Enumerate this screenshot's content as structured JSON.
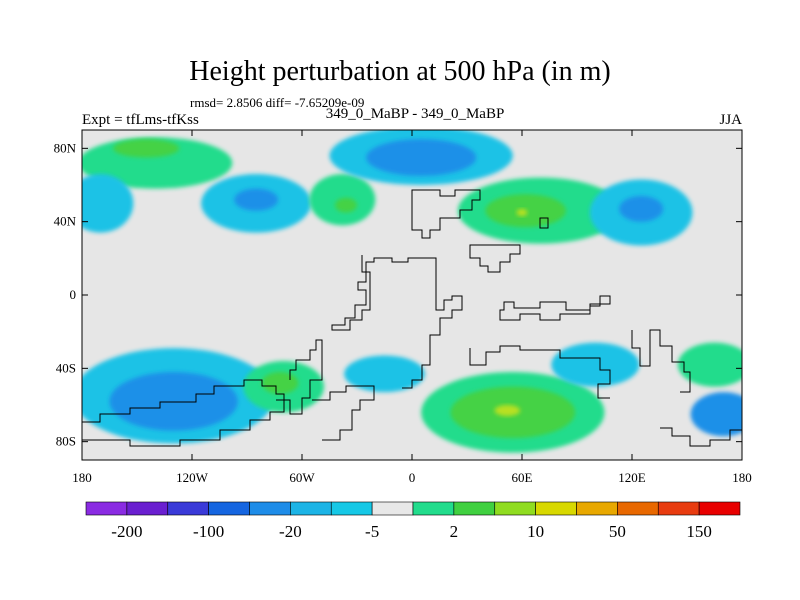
{
  "header": {
    "title": "Height perturbation at 500 hPa (in m)",
    "stats": "rmsd= 2.8506 diff= -7.65209e-09",
    "experiment": "Expt = tfLms-tfKss",
    "subtitle": "349_0_MaBP - 349_0_MaBP",
    "season": "JJA"
  },
  "map_axes": {
    "lon_range": [
      -180,
      180
    ],
    "lat_range": [
      -90,
      90
    ],
    "x_ticks": [
      {
        "lon": -180,
        "label": "180"
      },
      {
        "lon": -120,
        "label": "120W"
      },
      {
        "lon": -60,
        "label": "60W"
      },
      {
        "lon": 0,
        "label": "0"
      },
      {
        "lon": 60,
        "label": "60E"
      },
      {
        "lon": 120,
        "label": "120E"
      },
      {
        "lon": 180,
        "label": "180"
      }
    ],
    "y_ticks": [
      {
        "lat": 80,
        "label": "80N"
      },
      {
        "lat": 40,
        "label": "40N"
      },
      {
        "lat": 0,
        "label": "0"
      },
      {
        "lat": -40,
        "label": "40S"
      },
      {
        "lat": -80,
        "label": "80S"
      }
    ]
  },
  "colorbar": {
    "colors": [
      "#8a2be2",
      "#6a1fd0",
      "#3a3ad8",
      "#1565e0",
      "#1e8ce8",
      "#1cb4e6",
      "#16c8e6",
      "#e8e8e8",
      "#22dc8c",
      "#40d040",
      "#90dc20",
      "#d8d800",
      "#e8a800",
      "#e86800",
      "#e83c10",
      "#e80000"
    ],
    "labels": [
      {
        "index": 1,
        "text": "-200"
      },
      {
        "index": 3,
        "text": "-100"
      },
      {
        "index": 5,
        "text": "-20"
      },
      {
        "index": 7,
        "text": "-5"
      },
      {
        "index": 9,
        "text": "2"
      },
      {
        "index": 11,
        "text": "10"
      },
      {
        "index": 13,
        "text": "50"
      },
      {
        "index": 15,
        "text": "150"
      }
    ]
  },
  "palette": {
    "background": "#e6e6e6",
    "cyan": "#1ec2e6",
    "blue": "#1e90e8",
    "deep_blue": "#1a72e0",
    "light_green": "#22dc8c",
    "green": "#44d244",
    "yellow_green": "#b8e020",
    "coast": "#000000"
  },
  "anomaly_regions": [
    {
      "level": "light_green",
      "label": "north-atlantic-positive",
      "lon": -140,
      "lat": 72,
      "rx": 42,
      "ry": 14
    },
    {
      "level": "green",
      "label": "north-atlantic-core",
      "lon": -145,
      "lat": 80,
      "rx": 18,
      "ry": 5
    },
    {
      "level": "cyan",
      "label": "north-america-negative",
      "lon": -85,
      "lat": 50,
      "rx": 30,
      "ry": 16
    },
    {
      "level": "blue",
      "label": "north-america-core",
      "lon": -85,
      "lat": 52,
      "rx": 12,
      "ry": 6
    },
    {
      "level": "light_green",
      "label": "greenland-positive",
      "lon": -38,
      "lat": 52,
      "rx": 18,
      "ry": 14
    },
    {
      "level": "green",
      "label": "greenland-core",
      "lon": -36,
      "lat": 49,
      "rx": 6,
      "ry": 4
    },
    {
      "level": "cyan",
      "label": "arctic-negative",
      "lon": 5,
      "lat": 76,
      "rx": 50,
      "ry": 16
    },
    {
      "level": "blue",
      "label": "arctic-core",
      "lon": 5,
      "lat": 75,
      "rx": 30,
      "ry": 10
    },
    {
      "level": "light_green",
      "label": "europe-positive",
      "lon": 70,
      "lat": 46,
      "rx": 45,
      "ry": 18
    },
    {
      "level": "green",
      "label": "europe-core",
      "lon": 62,
      "lat": 46,
      "rx": 22,
      "ry": 9
    },
    {
      "level": "yellow_green",
      "label": "europe-max",
      "lon": 60,
      "lat": 45,
      "rx": 3,
      "ry": 2
    },
    {
      "level": "cyan",
      "label": "asia-negative",
      "lon": 125,
      "lat": 45,
      "rx": 28,
      "ry": 18
    },
    {
      "level": "blue",
      "label": "asia-core",
      "lon": 125,
      "lat": 47,
      "rx": 12,
      "ry": 7
    },
    {
      "level": "cyan",
      "label": "pacific-negative-north",
      "lon": -170,
      "lat": 50,
      "rx": 18,
      "ry": 16
    },
    {
      "level": "cyan",
      "label": "south-pacific-negative",
      "lon": -130,
      "lat": -55,
      "rx": 55,
      "ry": 26
    },
    {
      "level": "blue",
      "label": "south-pacific-core",
      "lon": -130,
      "lat": -58,
      "rx": 35,
      "ry": 16
    },
    {
      "level": "light_green",
      "label": "south-america-positive",
      "lon": -70,
      "lat": -50,
      "rx": 22,
      "ry": 14
    },
    {
      "level": "green",
      "label": "south-america-core",
      "lon": -72,
      "lat": -48,
      "rx": 10,
      "ry": 6
    },
    {
      "level": "cyan",
      "label": "south-atlantic-negative",
      "lon": -15,
      "lat": -43,
      "rx": 22,
      "ry": 10
    },
    {
      "level": "light_green",
      "label": "indian-ocean-positive",
      "lon": 55,
      "lat": -64,
      "rx": 50,
      "ry": 22
    },
    {
      "level": "green",
      "label": "indian-ocean-core",
      "lon": 55,
      "lat": -64,
      "rx": 34,
      "ry": 14
    },
    {
      "level": "yellow_green",
      "label": "indian-ocean-max",
      "lon": 52,
      "lat": -63,
      "rx": 7,
      "ry": 3
    },
    {
      "level": "cyan",
      "label": "australia-negative",
      "lon": 100,
      "lat": -38,
      "rx": 24,
      "ry": 12
    },
    {
      "level": "light_green",
      "label": "south-pacific-positive",
      "lon": 165,
      "lat": -38,
      "rx": 20,
      "ry": 12
    },
    {
      "level": "blue",
      "label": "antarctic-pacific-negative",
      "lon": 170,
      "lat": -65,
      "rx": 18,
      "ry": 12
    }
  ]
}
